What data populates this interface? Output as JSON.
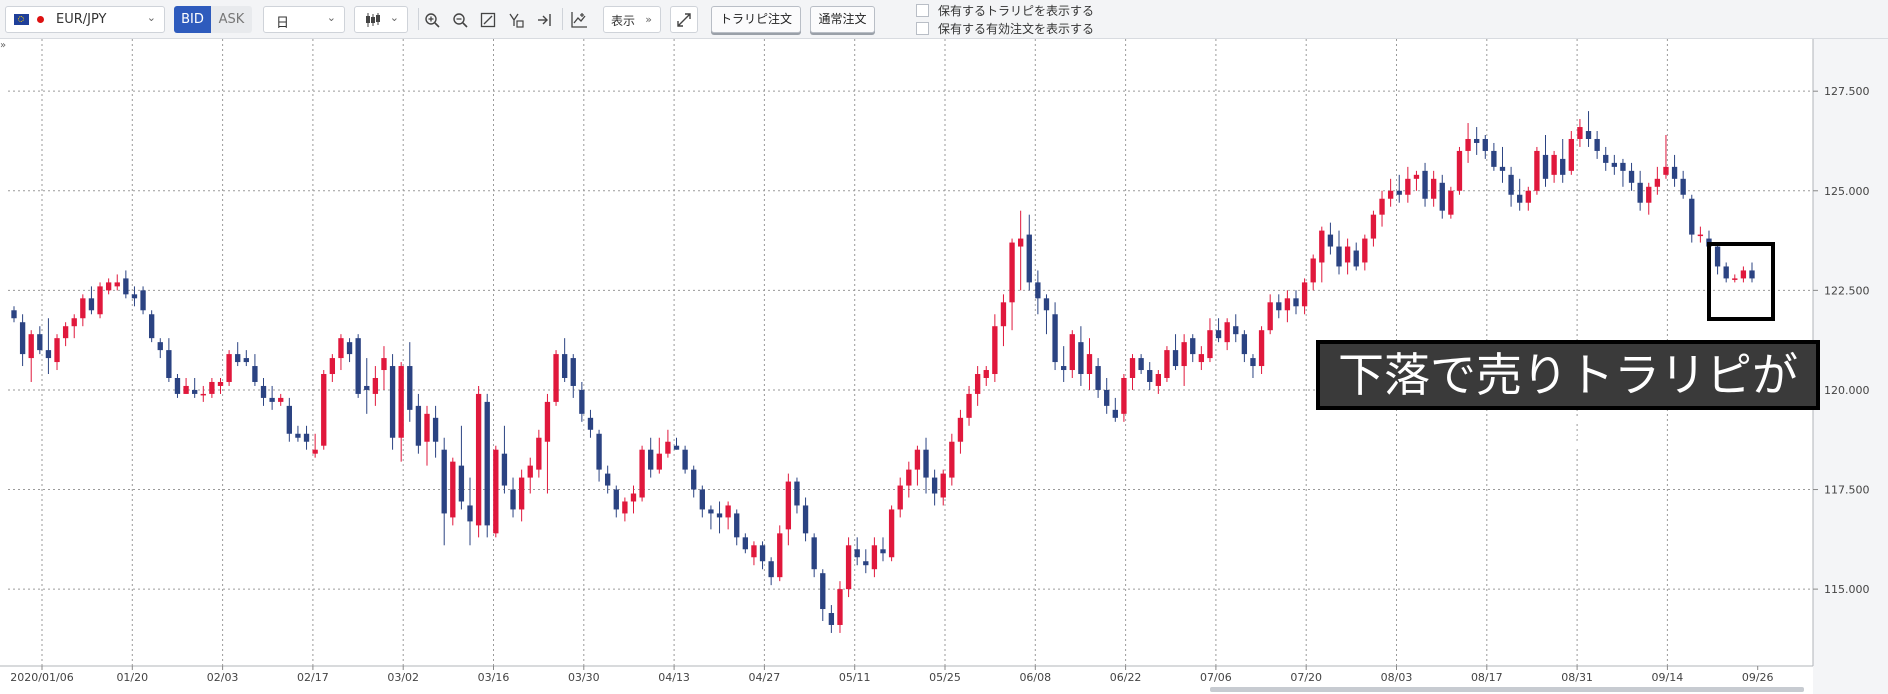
{
  "toolbar": {
    "pair": "EUR/JPY",
    "bid_label": "BID",
    "ask_label": "ASK",
    "period": "日",
    "display_label": "表示",
    "ifd_order_label": "トラリピ注文",
    "normal_order_label": "通常注文",
    "show_ifd_label": "保有するトラリピを表示する",
    "show_orders_label": "保有する有効注文を表示する",
    "icons": [
      "candlestick-icon",
      "zoom-in-icon",
      "zoom-out-icon",
      "zoom-reset-icon",
      "drawing-icon",
      "scroll-end-icon",
      "indicator-icon",
      "expand-icon"
    ]
  },
  "annotation": {
    "text": "下落で売りトラリピが決済"
  },
  "colors": {
    "up": "#e0183c",
    "down": "#2b4382",
    "grid": "#9a9a9a"
  },
  "chart_data": {
    "type": "candlestick",
    "title": "",
    "y_tick_labels": [
      "127.500",
      "125.000",
      "122.500",
      "120.000",
      "117.500",
      "115.000"
    ],
    "y_ticks": [
      127.5,
      125.0,
      122.5,
      120.0,
      117.5,
      115.0
    ],
    "ylim": [
      113.07,
      128.81
    ],
    "x_tick_labels": [
      "2020/01/06",
      "01/20",
      "02/03",
      "02/17",
      "03/02",
      "03/16",
      "03/30",
      "04/13",
      "04/27",
      "05/11",
      "05/25",
      "06/08",
      "06/22",
      "07/06",
      "07/20",
      "08/03",
      "08/17",
      "08/31",
      "09/14",
      "09/26"
    ],
    "grid": true,
    "ohlc": [
      [
        122.0,
        122.1,
        121.7,
        121.8
      ],
      [
        121.7,
        121.9,
        120.6,
        120.9
      ],
      [
        120.8,
        121.5,
        120.2,
        121.4
      ],
      [
        121.4,
        121.6,
        120.9,
        121.0
      ],
      [
        121.0,
        121.8,
        120.4,
        120.8
      ],
      [
        120.7,
        121.4,
        120.5,
        121.3
      ],
      [
        121.3,
        121.7,
        121.1,
        121.6
      ],
      [
        121.6,
        121.9,
        121.3,
        121.8
      ],
      [
        121.8,
        122.4,
        121.6,
        122.3
      ],
      [
        122.3,
        122.6,
        121.9,
        122.0
      ],
      [
        121.9,
        122.7,
        121.8,
        122.6
      ],
      [
        122.5,
        122.8,
        122.4,
        122.7
      ],
      [
        122.6,
        122.9,
        122.5,
        122.7
      ],
      [
        122.8,
        123.0,
        122.3,
        122.4
      ],
      [
        122.4,
        122.6,
        122.1,
        122.3
      ],
      [
        122.5,
        122.6,
        121.9,
        122.0
      ],
      [
        121.9,
        122.0,
        121.2,
        121.3
      ],
      [
        121.2,
        121.3,
        120.8,
        121.0
      ],
      [
        121.0,
        121.3,
        120.2,
        120.3
      ],
      [
        120.3,
        120.4,
        119.8,
        119.9
      ],
      [
        119.9,
        120.3,
        119.9,
        120.1
      ],
      [
        120.0,
        120.3,
        119.8,
        119.9
      ],
      [
        119.9,
        120.1,
        119.7,
        119.9
      ],
      [
        119.9,
        120.3,
        119.8,
        120.2
      ],
      [
        120.1,
        120.3,
        119.9,
        120.2
      ],
      [
        120.2,
        121.0,
        120.1,
        120.9
      ],
      [
        120.9,
        121.2,
        120.6,
        120.7
      ],
      [
        120.8,
        121.0,
        120.6,
        120.7
      ],
      [
        120.6,
        120.9,
        120.1,
        120.2
      ],
      [
        120.1,
        120.3,
        119.6,
        119.8
      ],
      [
        119.8,
        120.1,
        119.5,
        119.7
      ],
      [
        119.7,
        119.9,
        119.6,
        119.8
      ],
      [
        119.6,
        119.8,
        118.7,
        118.9
      ],
      [
        118.9,
        119.1,
        118.7,
        118.8
      ],
      [
        118.9,
        119.1,
        118.5,
        118.7
      ],
      [
        118.4,
        118.9,
        118.3,
        118.5
      ],
      [
        118.6,
        120.5,
        118.5,
        120.4
      ],
      [
        120.4,
        120.9,
        120.2,
        120.8
      ],
      [
        120.8,
        121.4,
        120.5,
        121.3
      ],
      [
        121.2,
        121.3,
        120.7,
        120.9
      ],
      [
        121.3,
        121.4,
        119.8,
        119.9
      ],
      [
        120.1,
        120.8,
        119.4,
        120.0
      ],
      [
        119.9,
        120.6,
        119.6,
        120.3
      ],
      [
        120.5,
        121.1,
        120.0,
        120.8
      ],
      [
        120.6,
        120.9,
        118.5,
        118.8
      ],
      [
        118.8,
        120.7,
        118.2,
        120.6
      ],
      [
        120.6,
        121.2,
        119.2,
        119.5
      ],
      [
        119.6,
        119.9,
        118.4,
        118.6
      ],
      [
        118.7,
        119.6,
        118.1,
        119.4
      ],
      [
        119.3,
        119.6,
        118.3,
        118.7
      ],
      [
        118.5,
        118.8,
        116.1,
        116.9
      ],
      [
        116.8,
        118.3,
        116.6,
        118.2
      ],
      [
        118.1,
        119.1,
        117.0,
        117.2
      ],
      [
        117.1,
        117.8,
        116.1,
        116.7
      ],
      [
        116.6,
        120.1,
        116.3,
        119.9
      ],
      [
        119.7,
        119.9,
        116.3,
        116.6
      ],
      [
        116.4,
        118.6,
        116.3,
        118.5
      ],
      [
        118.4,
        119.1,
        117.4,
        117.6
      ],
      [
        117.5,
        117.8,
        116.8,
        117.0
      ],
      [
        117.0,
        118.0,
        116.7,
        117.8
      ],
      [
        117.8,
        118.3,
        117.4,
        118.1
      ],
      [
        118.0,
        119.0,
        117.8,
        118.8
      ],
      [
        118.7,
        119.9,
        117.4,
        119.7
      ],
      [
        119.7,
        121.0,
        119.6,
        120.9
      ],
      [
        120.9,
        121.3,
        120.2,
        120.3
      ],
      [
        120.8,
        120.9,
        119.8,
        120.1
      ],
      [
        120.0,
        120.2,
        119.2,
        119.4
      ],
      [
        119.3,
        119.5,
        118.8,
        119.0
      ],
      [
        118.9,
        119.0,
        117.7,
        118.0
      ],
      [
        117.9,
        118.1,
        117.4,
        117.6
      ],
      [
        117.5,
        117.6,
        116.8,
        117.0
      ],
      [
        116.9,
        117.3,
        116.7,
        117.2
      ],
      [
        117.2,
        117.6,
        116.9,
        117.4
      ],
      [
        117.3,
        118.6,
        117.2,
        118.5
      ],
      [
        118.5,
        118.8,
        117.8,
        118.0
      ],
      [
        118.0,
        118.8,
        117.9,
        118.4
      ],
      [
        118.4,
        119.0,
        118.3,
        118.7
      ],
      [
        118.6,
        118.8,
        118.5,
        118.5
      ],
      [
        118.5,
        118.6,
        117.9,
        118.0
      ],
      [
        118.0,
        118.1,
        117.3,
        117.5
      ],
      [
        117.5,
        117.6,
        116.8,
        117.0
      ],
      [
        117.0,
        117.1,
        116.5,
        116.9
      ],
      [
        116.9,
        117.2,
        116.4,
        116.8
      ],
      [
        116.8,
        117.2,
        116.5,
        117.1
      ],
      [
        116.9,
        117.0,
        116.1,
        116.3
      ],
      [
        116.3,
        116.4,
        115.9,
        116.0
      ],
      [
        115.8,
        116.2,
        115.6,
        116.1
      ],
      [
        116.1,
        116.2,
        115.5,
        115.7
      ],
      [
        115.7,
        115.8,
        115.1,
        115.3
      ],
      [
        115.3,
        116.6,
        115.2,
        116.4
      ],
      [
        116.5,
        117.9,
        116.1,
        117.7
      ],
      [
        117.7,
        117.8,
        116.9,
        117.1
      ],
      [
        117.1,
        117.3,
        116.2,
        116.4
      ],
      [
        116.3,
        116.4,
        115.3,
        115.5
      ],
      [
        115.4,
        115.5,
        114.2,
        114.5
      ],
      [
        114.4,
        114.6,
        113.9,
        114.1
      ],
      [
        114.1,
        115.2,
        113.9,
        115.0
      ],
      [
        115.0,
        116.3,
        114.8,
        116.1
      ],
      [
        116.0,
        116.3,
        115.6,
        115.8
      ],
      [
        115.7,
        116.0,
        115.4,
        115.6
      ],
      [
        115.5,
        116.3,
        115.3,
        116.1
      ],
      [
        116.0,
        116.3,
        115.7,
        115.9
      ],
      [
        115.8,
        117.1,
        115.7,
        117.0
      ],
      [
        117.0,
        117.8,
        116.8,
        117.6
      ],
      [
        117.6,
        118.2,
        117.3,
        118.0
      ],
      [
        118.0,
        118.6,
        117.6,
        118.5
      ],
      [
        118.5,
        118.8,
        117.4,
        117.8
      ],
      [
        117.8,
        118.0,
        117.1,
        117.4
      ],
      [
        117.3,
        118.0,
        117.1,
        117.9
      ],
      [
        117.8,
        118.9,
        117.6,
        118.7
      ],
      [
        118.7,
        119.5,
        118.4,
        119.3
      ],
      [
        119.3,
        120.1,
        119.1,
        119.9
      ],
      [
        119.9,
        120.6,
        119.6,
        120.4
      ],
      [
        120.3,
        120.6,
        120.1,
        120.5
      ],
      [
        120.4,
        121.9,
        120.2,
        121.6
      ],
      [
        121.6,
        122.4,
        121.1,
        122.2
      ],
      [
        122.2,
        123.8,
        121.5,
        123.7
      ],
      [
        123.6,
        124.5,
        122.5,
        123.8
      ],
      [
        123.9,
        124.4,
        122.5,
        122.7
      ],
      [
        122.7,
        123.0,
        121.9,
        122.3
      ],
      [
        122.3,
        122.4,
        121.4,
        122.0
      ],
      [
        121.9,
        122.2,
        120.5,
        120.7
      ],
      [
        120.6,
        121.1,
        120.2,
        120.5
      ],
      [
        120.5,
        121.5,
        120.3,
        121.4
      ],
      [
        121.2,
        121.6,
        120.1,
        120.4
      ],
      [
        120.4,
        121.3,
        120.0,
        120.9
      ],
      [
        120.6,
        120.8,
        119.8,
        120.0
      ],
      [
        120.0,
        120.3,
        119.4,
        119.6
      ],
      [
        119.5,
        119.8,
        119.2,
        119.3
      ],
      [
        119.4,
        120.4,
        119.2,
        120.3
      ],
      [
        120.3,
        120.9,
        120.0,
        120.8
      ],
      [
        120.8,
        120.9,
        120.4,
        120.5
      ],
      [
        120.5,
        120.7,
        120.0,
        120.2
      ],
      [
        120.1,
        120.5,
        119.9,
        120.4
      ],
      [
        120.3,
        121.1,
        120.2,
        121.0
      ],
      [
        121.0,
        121.4,
        120.5,
        120.6
      ],
      [
        120.6,
        121.4,
        120.1,
        121.2
      ],
      [
        121.3,
        121.4,
        120.7,
        120.9
      ],
      [
        120.7,
        121.1,
        120.5,
        120.9
      ],
      [
        120.8,
        121.8,
        120.7,
        121.5
      ],
      [
        121.5,
        121.8,
        121.2,
        121.3
      ],
      [
        121.2,
        121.8,
        121.0,
        121.7
      ],
      [
        121.6,
        121.9,
        121.2,
        121.4
      ],
      [
        121.4,
        121.5,
        120.7,
        120.9
      ],
      [
        120.8,
        120.9,
        120.3,
        120.6
      ],
      [
        120.6,
        121.6,
        120.4,
        121.5
      ],
      [
        121.5,
        122.4,
        121.4,
        122.2
      ],
      [
        122.2,
        122.4,
        121.8,
        122.0
      ],
      [
        122.0,
        122.5,
        121.7,
        122.3
      ],
      [
        122.3,
        122.5,
        121.9,
        122.1
      ],
      [
        122.1,
        122.8,
        121.9,
        122.7
      ],
      [
        122.7,
        123.4,
        122.5,
        123.3
      ],
      [
        123.2,
        124.1,
        122.7,
        124.0
      ],
      [
        123.9,
        124.2,
        123.4,
        123.6
      ],
      [
        123.6,
        124.0,
        122.9,
        123.1
      ],
      [
        123.2,
        123.8,
        122.9,
        123.6
      ],
      [
        123.5,
        123.7,
        123.0,
        123.1
      ],
      [
        123.2,
        123.9,
        123.0,
        123.8
      ],
      [
        123.8,
        124.5,
        123.6,
        124.4
      ],
      [
        124.4,
        125.0,
        124.1,
        124.8
      ],
      [
        124.8,
        125.3,
        124.6,
        125.0
      ],
      [
        125.0,
        125.4,
        124.7,
        124.9
      ],
      [
        124.9,
        125.6,
        124.7,
        125.3
      ],
      [
        125.3,
        125.5,
        125.0,
        125.4
      ],
      [
        125.5,
        125.7,
        124.6,
        124.8
      ],
      [
        124.8,
        125.5,
        124.6,
        125.3
      ],
      [
        125.2,
        125.4,
        124.3,
        124.5
      ],
      [
        124.4,
        125.1,
        124.3,
        125.0
      ],
      [
        125.0,
        126.1,
        124.9,
        126.0
      ],
      [
        126.0,
        126.7,
        125.7,
        126.3
      ],
      [
        126.3,
        126.6,
        125.9,
        126.2
      ],
      [
        126.3,
        126.4,
        125.8,
        126.0
      ],
      [
        126.0,
        126.2,
        125.5,
        125.6
      ],
      [
        125.6,
        126.1,
        125.2,
        125.5
      ],
      [
        125.4,
        125.6,
        124.6,
        124.9
      ],
      [
        124.9,
        125.3,
        124.5,
        124.7
      ],
      [
        124.7,
        125.1,
        124.5,
        125.0
      ],
      [
        125.0,
        126.1,
        124.9,
        126.0
      ],
      [
        125.9,
        126.4,
        125.1,
        125.3
      ],
      [
        125.4,
        126.0,
        125.2,
        125.9
      ],
      [
        125.8,
        126.3,
        125.2,
        125.4
      ],
      [
        125.5,
        126.5,
        125.4,
        126.3
      ],
      [
        126.3,
        126.8,
        126.1,
        126.6
      ],
      [
        126.5,
        127.0,
        126.1,
        126.3
      ],
      [
        126.3,
        126.5,
        125.8,
        126.0
      ],
      [
        125.9,
        126.1,
        125.5,
        125.7
      ],
      [
        125.7,
        125.9,
        125.4,
        125.6
      ],
      [
        125.7,
        125.8,
        125.1,
        125.5
      ],
      [
        125.5,
        125.7,
        125.0,
        125.2
      ],
      [
        125.2,
        125.5,
        124.5,
        124.7
      ],
      [
        124.7,
        125.2,
        124.4,
        125.1
      ],
      [
        125.1,
        125.6,
        124.9,
        125.3
      ],
      [
        125.4,
        126.4,
        125.3,
        125.6
      ],
      [
        125.6,
        125.9,
        125.1,
        125.3
      ],
      [
        125.3,
        125.5,
        124.8,
        124.9
      ],
      [
        124.8,
        124.9,
        123.7,
        123.9
      ],
      [
        123.9,
        124.1,
        123.7,
        123.9
      ],
      [
        123.8,
        124.0,
        123.4,
        123.6
      ],
      [
        123.6,
        123.7,
        122.9,
        123.1
      ],
      [
        123.1,
        123.2,
        122.7,
        122.8
      ],
      [
        122.8,
        122.9,
        122.7,
        122.8
      ],
      [
        122.8,
        123.1,
        122.7,
        123.0
      ],
      [
        123.0,
        123.2,
        122.7,
        122.8
      ]
    ]
  }
}
